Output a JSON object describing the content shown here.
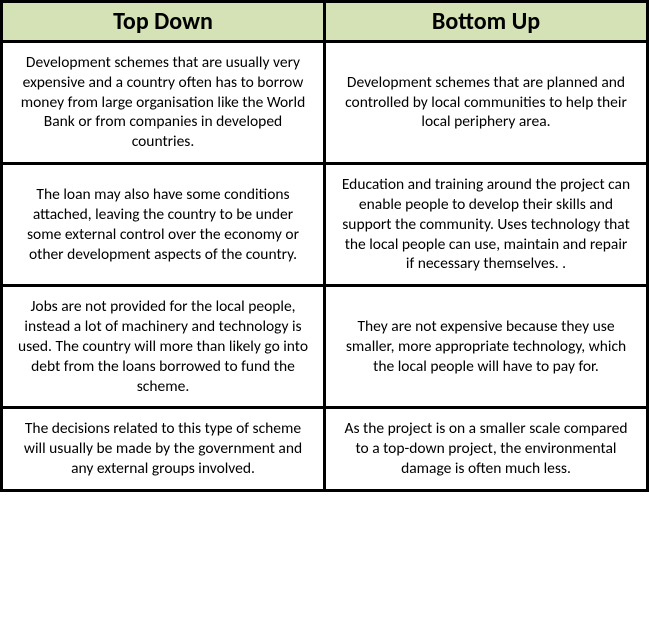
{
  "table": {
    "header_bg": "#d4e2b6",
    "cell_bg": "#ffffff",
    "border_color": "#000000",
    "text_color": "#000000",
    "header_fontsize": 24,
    "cell_fontsize": 15.5,
    "columns": [
      {
        "label": "Top Down"
      },
      {
        "label": "Bottom Up"
      }
    ],
    "rows": [
      {
        "left": "Development schemes that are usually very expensive and a country often has to borrow money from large organisation like the World Bank or from companies in developed countries.",
        "right": "Development schemes that are planned and controlled by local communities to help their local periphery area."
      },
      {
        "left": "The loan may also have some conditions attached, leaving the country to be under some external control over the economy or other development aspects of the country.",
        "right": "Education and training around the project can enable people to develop their skills and support the community. Uses technology that the local people can use, maintain and repair if necessary themselves. ."
      },
      {
        "left": "Jobs are not provided for the local people, instead a lot of machinery and technology is used. The country will more than likely go into debt from the loans borrowed to fund the scheme.",
        "right": "They are not expensive because they use smaller, more appropriate technology, which the local people will have to pay for."
      },
      {
        "left": "The decisions related to this type of  scheme will usually be made by the government and any external groups involved.",
        "right": "As the project is on a smaller scale compared to a top-down project, the environmental damage is often much less."
      }
    ]
  }
}
